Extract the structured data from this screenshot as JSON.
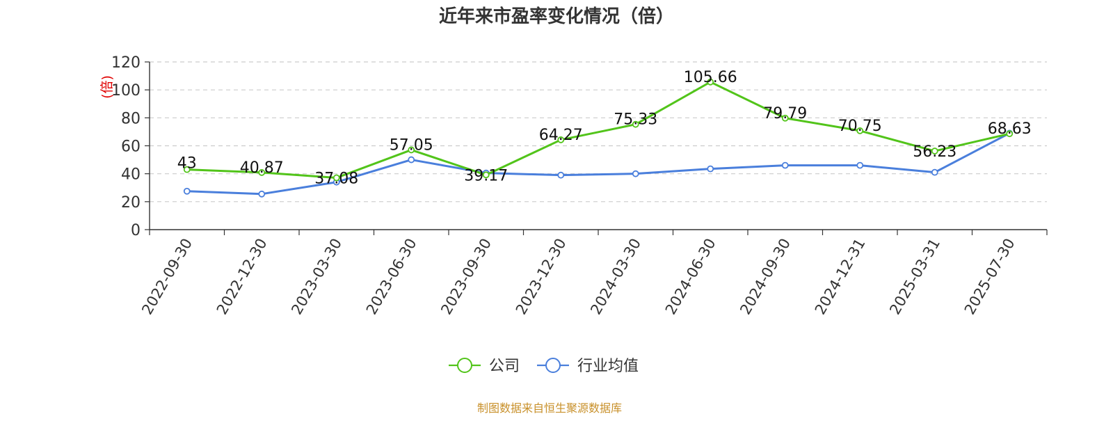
{
  "chart_data": {
    "type": "line",
    "title": "近年来市盈率变化情况（倍）",
    "ylabel": "(倍)",
    "xlabel": "",
    "ylim": [
      0,
      120
    ],
    "yticks": [
      0,
      20,
      40,
      60,
      80,
      100,
      120
    ],
    "grid": true,
    "legend_position": "bottom",
    "categories": [
      "2022-09-30",
      "2022-12-30",
      "2023-03-30",
      "2023-06-30",
      "2023-09-30",
      "2023-12-30",
      "2024-03-30",
      "2024-06-30",
      "2024-09-30",
      "2024-12-31",
      "2025-03-31",
      "2025-07-30"
    ],
    "series": [
      {
        "name": "公司",
        "color": "#52c41a",
        "values": [
          43,
          40.87,
          37.08,
          57.05,
          39.17,
          64.27,
          75.33,
          105.66,
          79.79,
          70.75,
          56.23,
          68.63
        ],
        "labels": [
          "43",
          "40.87",
          "37.08",
          "57.05",
          "39.17",
          "64.27",
          "75.33",
          "105.66",
          "79.79",
          "70.75",
          "56.23",
          "68.63"
        ],
        "show_labels": true
      },
      {
        "name": "行业均值",
        "color": "#4a7fdc",
        "values": [
          27.5,
          25.5,
          34,
          50,
          40.5,
          39,
          40,
          43.5,
          46,
          46,
          41,
          69
        ],
        "show_labels": false
      }
    ],
    "source": "制图数据来自恒生聚源数据库"
  }
}
